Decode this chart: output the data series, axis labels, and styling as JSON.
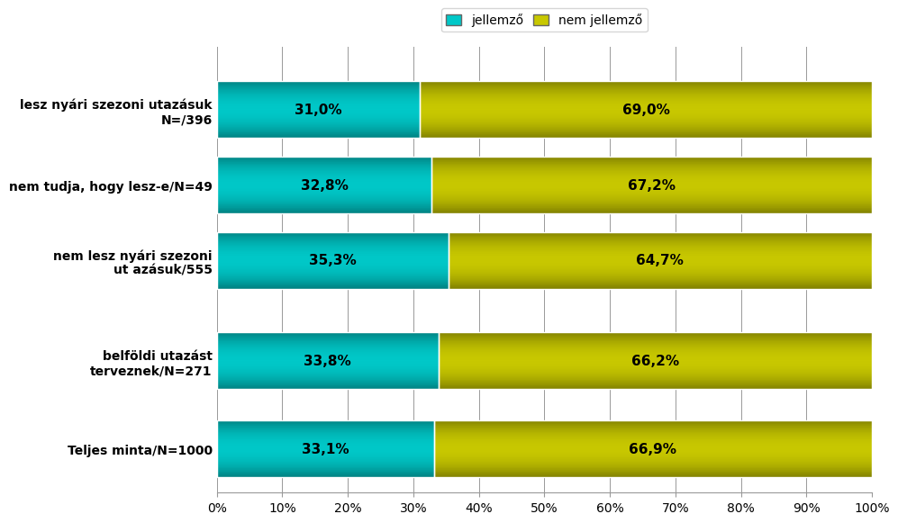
{
  "categories": [
    "lesz nyári szezoni utazásuk\nN=/396",
    "nem tudja, hogy lesz-e/N=49",
    "nem lesz nyári szezoni\nut azásuk/555",
    "belföldi utazást\nterveznek/N=271",
    "Teljes minta/N=1000"
  ],
  "jellemzo": [
    31.0,
    32.8,
    35.3,
    33.8,
    33.1
  ],
  "nem_jellemzo": [
    69.0,
    67.2,
    64.7,
    66.2,
    66.9
  ],
  "color_jellemzo": "#00c8c8",
  "color_nem_jellemzo": "#c8c800",
  "legend_jellemzo": "jellemző",
  "legend_nem_jellemzo": "nem jellemző",
  "xlim": [
    0,
    100
  ],
  "xticks": [
    0,
    10,
    20,
    30,
    40,
    50,
    60,
    70,
    80,
    90,
    100
  ],
  "xticklabels": [
    "0%",
    "10%",
    "20%",
    "30%",
    "40%",
    "50%",
    "60%",
    "70%",
    "80%",
    "90%",
    "100%"
  ],
  "y_positions": [
    6.0,
    4.8,
    3.6,
    2.0,
    0.6
  ],
  "bar_height": 0.9,
  "label_fontsize": 11,
  "tick_fontsize": 10,
  "legend_fontsize": 10,
  "background_color": "#ffffff",
  "grid_color": "#999999"
}
